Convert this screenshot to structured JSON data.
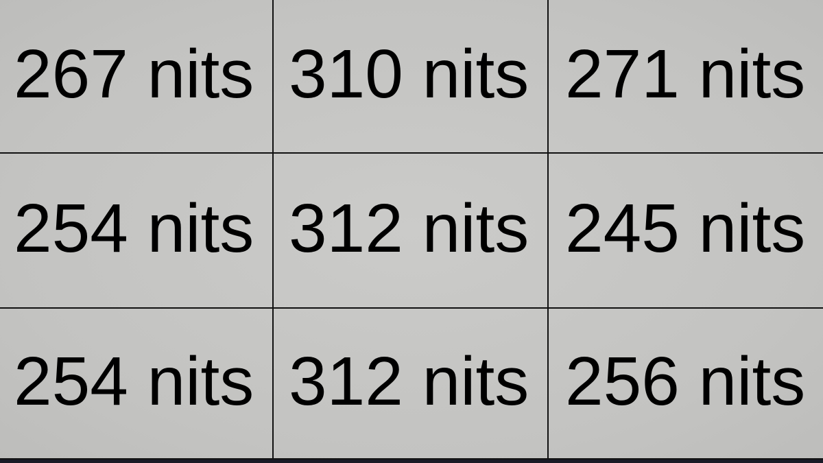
{
  "cells": [
    {
      "label": "267 nits"
    },
    {
      "label": "310 nits"
    },
    {
      "label": "271 nits"
    },
    {
      "label": "254 nits"
    },
    {
      "label": "312 nits"
    },
    {
      "label": "245 nits"
    },
    {
      "label": "254 nits"
    },
    {
      "label": "312 nits"
    },
    {
      "label": "256 nits"
    }
  ],
  "colors": {
    "background": "#c5c5c3",
    "text": "#000000",
    "grid_line": "#111111"
  }
}
